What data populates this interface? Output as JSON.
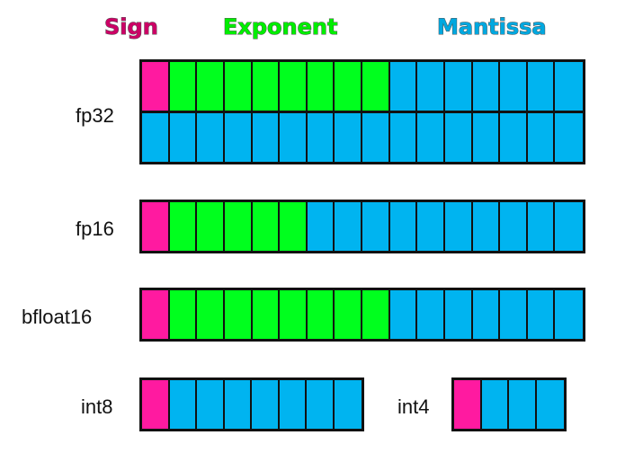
{
  "legend": {
    "sign": {
      "label": "Sign",
      "color": "#cc0066"
    },
    "exponent": {
      "label": "Exponent",
      "color": "#00ee00"
    },
    "mantissa": {
      "label": "Mantissa",
      "color": "#00a8e0"
    }
  },
  "colors": {
    "sign_bit": "#ff1aa0",
    "exponent_bit": "#00ff1e",
    "mantissa_bit": "#00b4f0",
    "outline": "#111111"
  },
  "formats": [
    {
      "id": "fp32",
      "label": "fp32",
      "total_bits": 32,
      "rows": [
        {
          "sign": 1,
          "exponent": 8,
          "mantissa": 7
        },
        {
          "sign": 0,
          "exponent": 0,
          "mantissa": 16
        }
      ]
    },
    {
      "id": "fp16",
      "label": "fp16",
      "total_bits": 16,
      "rows": [
        {
          "sign": 1,
          "exponent": 5,
          "mantissa": 10
        }
      ]
    },
    {
      "id": "bfloat16",
      "label": "bfloat16",
      "total_bits": 16,
      "rows": [
        {
          "sign": 1,
          "exponent": 8,
          "mantissa": 7
        }
      ]
    },
    {
      "id": "int8",
      "label": "int8",
      "total_bits": 8,
      "rows": [
        {
          "sign": 1,
          "exponent": 0,
          "mantissa": 7
        }
      ]
    },
    {
      "id": "int4",
      "label": "int4",
      "total_bits": 4,
      "rows": [
        {
          "sign": 1,
          "exponent": 0,
          "mantissa": 3
        }
      ]
    }
  ]
}
